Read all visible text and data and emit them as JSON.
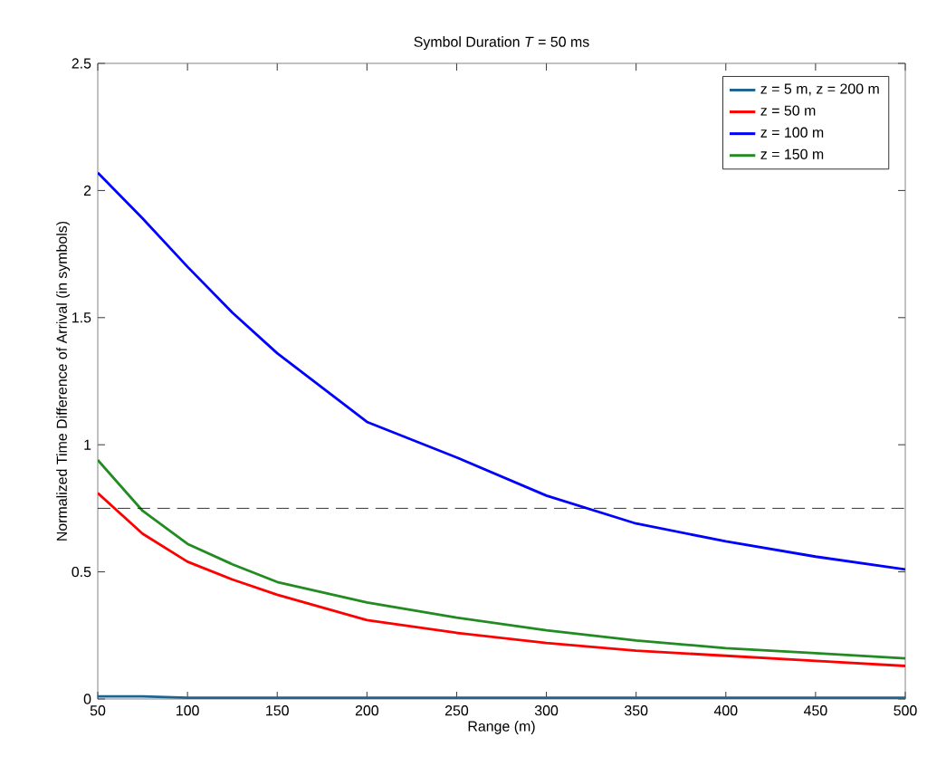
{
  "chart_data": {
    "type": "line",
    "title": "Symbol Duration *T* = 50 ms",
    "xlabel": "Range (m)",
    "ylabel": "Normalized Time Difference of Arrival (in symbols)",
    "x": [
      50,
      75,
      100,
      125,
      150,
      200,
      250,
      300,
      350,
      400,
      450,
      500
    ],
    "series": [
      {
        "name": "z = 5 m, z = 200 m",
        "color": "#1f6391",
        "values": [
          0.01,
          0.01,
          0.005,
          0.005,
          0.005,
          0.005,
          0.005,
          0.005,
          0.005,
          0.005,
          0.005,
          0.005
        ]
      },
      {
        "name": "z = 50 m",
        "color": "#ff0000",
        "values": [
          0.81,
          0.65,
          0.54,
          0.47,
          0.41,
          0.31,
          0.26,
          0.22,
          0.19,
          0.17,
          0.15,
          0.13
        ]
      },
      {
        "name": "z = 100 m",
        "color": "#0000ff",
        "values": [
          2.07,
          1.89,
          1.7,
          1.52,
          1.36,
          1.09,
          0.95,
          0.8,
          0.69,
          0.62,
          0.56,
          0.51
        ]
      },
      {
        "name": "z = 150 m",
        "color": "#228b22",
        "values": [
          0.94,
          0.74,
          0.61,
          0.53,
          0.46,
          0.38,
          0.32,
          0.27,
          0.23,
          0.2,
          0.18,
          0.16
        ]
      }
    ],
    "xlim": [
      50,
      500
    ],
    "ylim": [
      0,
      2.5
    ],
    "xticks": [
      50,
      100,
      150,
      200,
      250,
      300,
      350,
      400,
      450,
      500
    ],
    "yticks": [
      0,
      0.5,
      1,
      1.5,
      2,
      2.5
    ],
    "ref_lines": [
      {
        "axis": "y",
        "value": 0.75,
        "color": "#000000",
        "line_style": "dashed"
      }
    ],
    "legend": "top right",
    "grid": false,
    "marker": "none",
    "line_style": "solid"
  }
}
